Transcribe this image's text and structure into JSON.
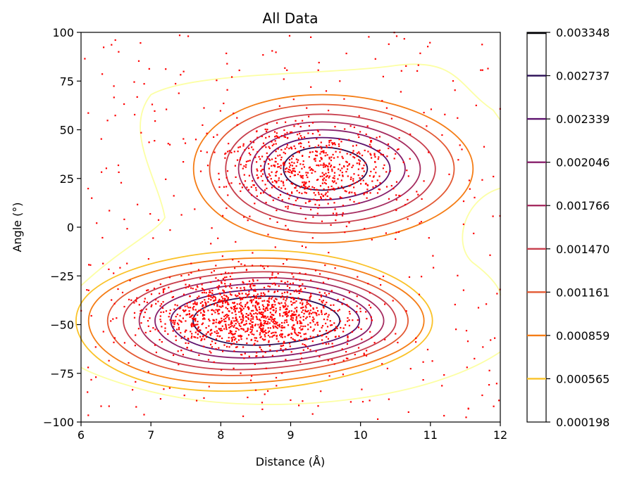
{
  "chart_data": {
    "type": "scatter",
    "title": "All Data",
    "xlabel": "Distance (Å)",
    "ylabel": "Angle (°)",
    "xlim": [
      6,
      12
    ],
    "ylim": [
      -100,
      100
    ],
    "xticks": [
      "6",
      "7",
      "8",
      "9",
      "10",
      "11",
      "12"
    ],
    "yticks": [
      "−100",
      "−75",
      "−50",
      "−25",
      "0",
      "25",
      "50",
      "75",
      "100"
    ],
    "scatter_color": "#ff0000",
    "clusters": [
      {
        "center": [
          8.45,
          -45
        ],
        "spread": [
          1.05,
          14
        ],
        "count": 1250
      },
      {
        "center": [
          9.35,
          30
        ],
        "spread": [
          0.85,
          16
        ],
        "count": 650
      },
      {
        "center": [
          9.0,
          0
        ],
        "spread": [
          2.6,
          75
        ],
        "count": 380
      }
    ],
    "contour_levels": [
      {
        "level": "0.000198",
        "color": "#fcffa4"
      },
      {
        "level": "0.000565",
        "color": "#fac228"
      },
      {
        "level": "0.000859",
        "color": "#f57d15"
      },
      {
        "level": "0.001161",
        "color": "#e35933"
      },
      {
        "level": "0.001470",
        "color": "#c73e4c"
      },
      {
        "level": "0.001766",
        "color": "#a52c60"
      },
      {
        "level": "0.002046",
        "color": "#871f6b"
      },
      {
        "level": "0.002339",
        "color": "#5c126e"
      },
      {
        "level": "0.002737",
        "color": "#280b54"
      },
      {
        "level": "0.003348",
        "color": "#000004"
      }
    ],
    "colorbar_labels": [
      "0.003348",
      "0.002737",
      "0.002339",
      "0.002046",
      "0.001766",
      "0.001470",
      "0.001161",
      "0.000859",
      "0.000565",
      "0.000198"
    ]
  }
}
